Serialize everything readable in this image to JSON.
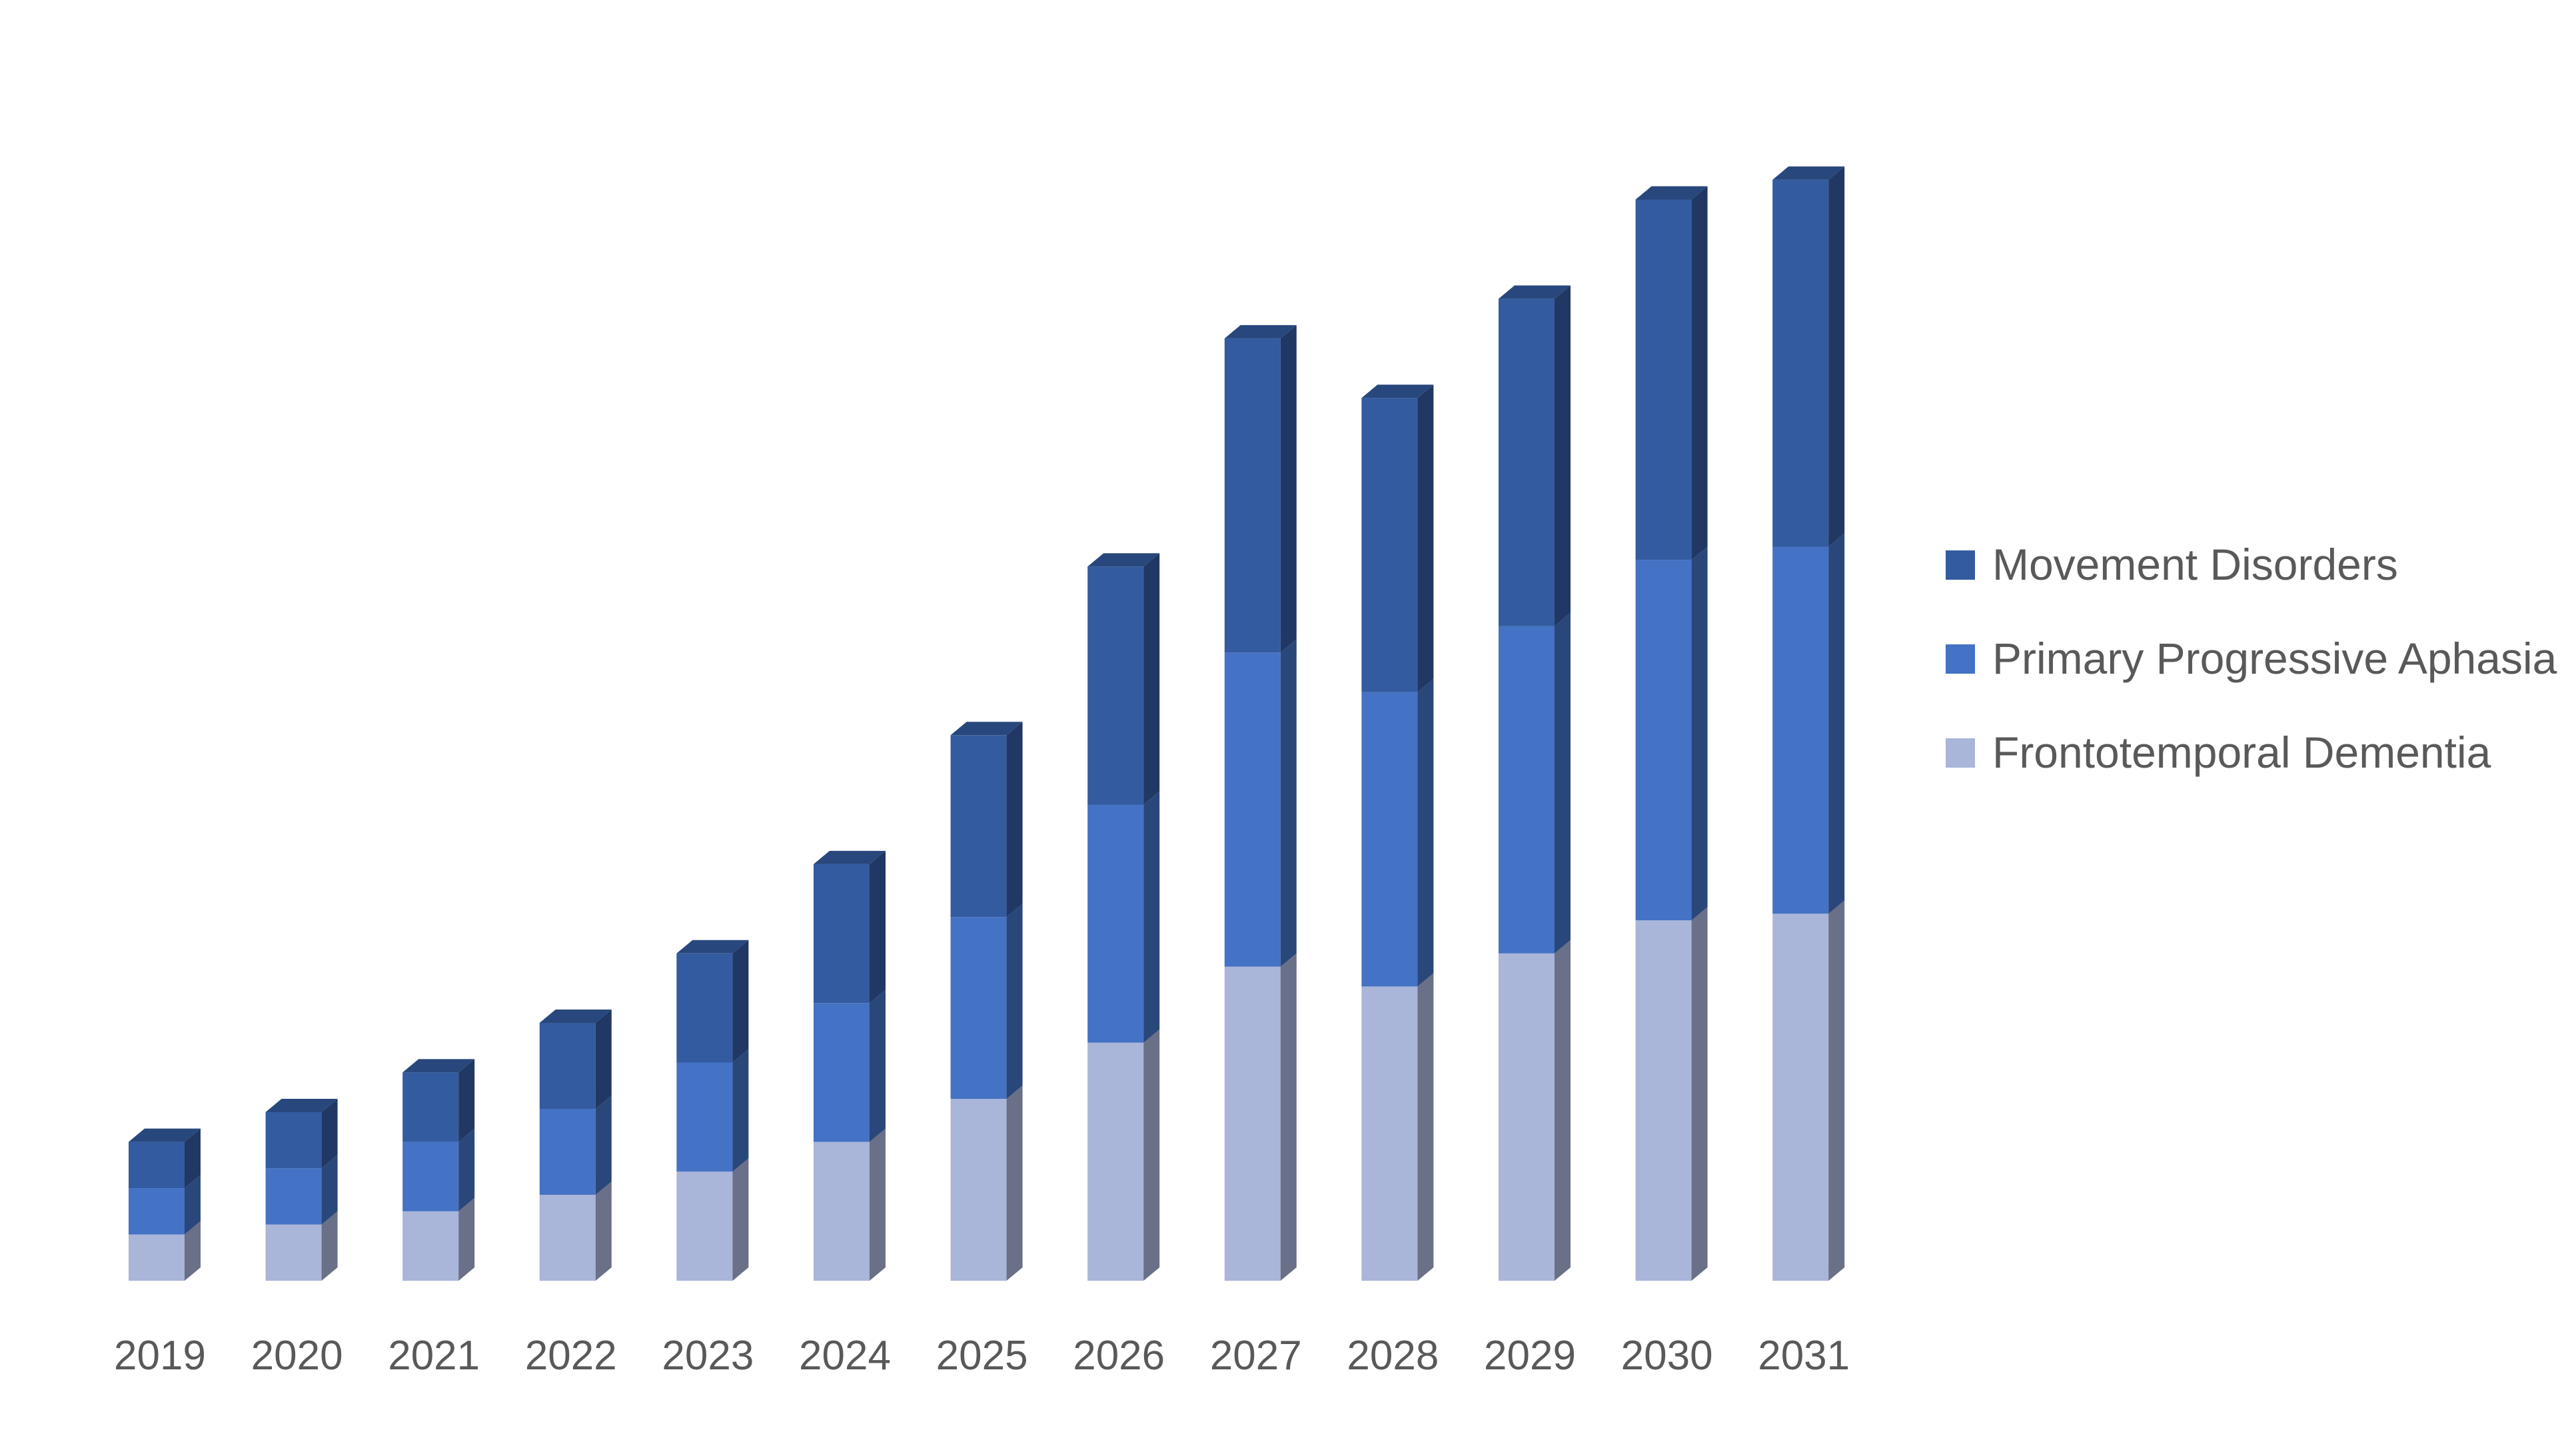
{
  "chart_data": {
    "type": "bar",
    "stacked": true,
    "style": "3d-column",
    "categories": [
      "2019",
      "2020",
      "2021",
      "2022",
      "2023",
      "2024",
      "2025",
      "2026",
      "2027",
      "2028",
      "2029",
      "2030",
      "2031"
    ],
    "series": [
      {
        "name": "Frontotemporal Dementia",
        "color": "#A9B5D9",
        "values": [
          7,
          8.5,
          10.5,
          13,
          16.5,
          21,
          27.5,
          36,
          47.5,
          44.5,
          49.5,
          54.5,
          55.5
        ]
      },
      {
        "name": "Primary Progressive Aphasia",
        "color": "#4472C4",
        "values": [
          7,
          8.5,
          10.5,
          13,
          16.5,
          21,
          27.5,
          36,
          47.5,
          44.5,
          49.5,
          54.5,
          55.5
        ]
      },
      {
        "name": "Movement Disorders",
        "color": "#335B9F",
        "values": [
          7,
          8.5,
          10.5,
          13,
          16.5,
          21,
          27.5,
          36,
          47.5,
          44.5,
          49.5,
          54.5,
          55.5
        ]
      }
    ],
    "ylim": [
      0,
      170
    ],
    "grid": false,
    "legend_position": "right",
    "legend_order": [
      "Movement Disorders",
      "Primary Progressive Aphasia",
      "Frontotemporal Dementia"
    ],
    "title": "",
    "xlabel": "",
    "ylabel": ""
  }
}
